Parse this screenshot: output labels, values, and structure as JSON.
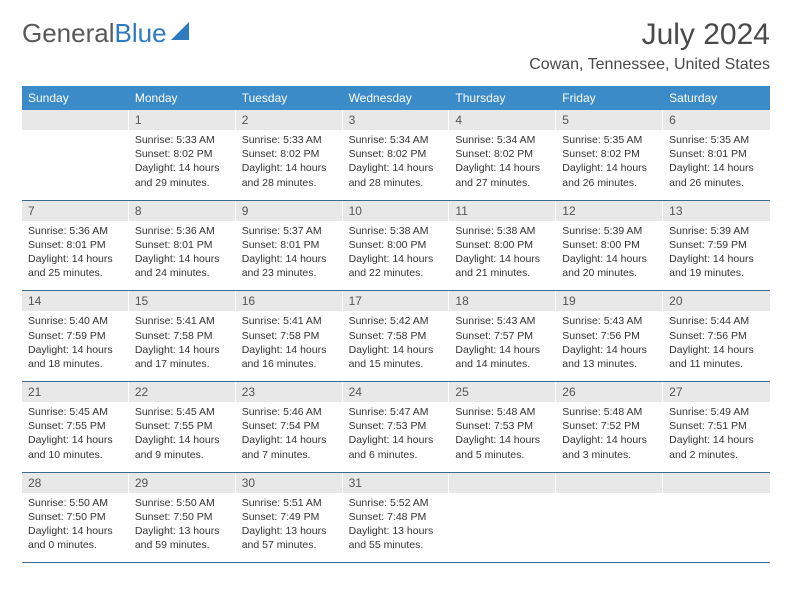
{
  "brand": {
    "part1": "General",
    "part2": "Blue"
  },
  "title": "July 2024",
  "location": "Cowan, Tennessee, United States",
  "colors": {
    "header_bg": "#3b8bc8",
    "header_text": "#ffffff",
    "date_bg": "#e8e8e8",
    "date_text": "#555555",
    "body_text": "#333333",
    "rule": "#3b6a8f",
    "logo_gray": "#5a5a5a",
    "logo_blue": "#2f7bbf"
  },
  "day_names": [
    "Sunday",
    "Monday",
    "Tuesday",
    "Wednesday",
    "Thursday",
    "Friday",
    "Saturday"
  ],
  "weeks": [
    {
      "dates": [
        "",
        "1",
        "2",
        "3",
        "4",
        "5",
        "6"
      ],
      "cells": [
        [],
        [
          "Sunrise: 5:33 AM",
          "Sunset: 8:02 PM",
          "Daylight: 14 hours",
          "and 29 minutes."
        ],
        [
          "Sunrise: 5:33 AM",
          "Sunset: 8:02 PM",
          "Daylight: 14 hours",
          "and 28 minutes."
        ],
        [
          "Sunrise: 5:34 AM",
          "Sunset: 8:02 PM",
          "Daylight: 14 hours",
          "and 28 minutes."
        ],
        [
          "Sunrise: 5:34 AM",
          "Sunset: 8:02 PM",
          "Daylight: 14 hours",
          "and 27 minutes."
        ],
        [
          "Sunrise: 5:35 AM",
          "Sunset: 8:02 PM",
          "Daylight: 14 hours",
          "and 26 minutes."
        ],
        [
          "Sunrise: 5:35 AM",
          "Sunset: 8:01 PM",
          "Daylight: 14 hours",
          "and 26 minutes."
        ]
      ]
    },
    {
      "dates": [
        "7",
        "8",
        "9",
        "10",
        "11",
        "12",
        "13"
      ],
      "cells": [
        [
          "Sunrise: 5:36 AM",
          "Sunset: 8:01 PM",
          "Daylight: 14 hours",
          "and 25 minutes."
        ],
        [
          "Sunrise: 5:36 AM",
          "Sunset: 8:01 PM",
          "Daylight: 14 hours",
          "and 24 minutes."
        ],
        [
          "Sunrise: 5:37 AM",
          "Sunset: 8:01 PM",
          "Daylight: 14 hours",
          "and 23 minutes."
        ],
        [
          "Sunrise: 5:38 AM",
          "Sunset: 8:00 PM",
          "Daylight: 14 hours",
          "and 22 minutes."
        ],
        [
          "Sunrise: 5:38 AM",
          "Sunset: 8:00 PM",
          "Daylight: 14 hours",
          "and 21 minutes."
        ],
        [
          "Sunrise: 5:39 AM",
          "Sunset: 8:00 PM",
          "Daylight: 14 hours",
          "and 20 minutes."
        ],
        [
          "Sunrise: 5:39 AM",
          "Sunset: 7:59 PM",
          "Daylight: 14 hours",
          "and 19 minutes."
        ]
      ]
    },
    {
      "dates": [
        "14",
        "15",
        "16",
        "17",
        "18",
        "19",
        "20"
      ],
      "cells": [
        [
          "Sunrise: 5:40 AM",
          "Sunset: 7:59 PM",
          "Daylight: 14 hours",
          "and 18 minutes."
        ],
        [
          "Sunrise: 5:41 AM",
          "Sunset: 7:58 PM",
          "Daylight: 14 hours",
          "and 17 minutes."
        ],
        [
          "Sunrise: 5:41 AM",
          "Sunset: 7:58 PM",
          "Daylight: 14 hours",
          "and 16 minutes."
        ],
        [
          "Sunrise: 5:42 AM",
          "Sunset: 7:58 PM",
          "Daylight: 14 hours",
          "and 15 minutes."
        ],
        [
          "Sunrise: 5:43 AM",
          "Sunset: 7:57 PM",
          "Daylight: 14 hours",
          "and 14 minutes."
        ],
        [
          "Sunrise: 5:43 AM",
          "Sunset: 7:56 PM",
          "Daylight: 14 hours",
          "and 13 minutes."
        ],
        [
          "Sunrise: 5:44 AM",
          "Sunset: 7:56 PM",
          "Daylight: 14 hours",
          "and 11 minutes."
        ]
      ]
    },
    {
      "dates": [
        "21",
        "22",
        "23",
        "24",
        "25",
        "26",
        "27"
      ],
      "cells": [
        [
          "Sunrise: 5:45 AM",
          "Sunset: 7:55 PM",
          "Daylight: 14 hours",
          "and 10 minutes."
        ],
        [
          "Sunrise: 5:45 AM",
          "Sunset: 7:55 PM",
          "Daylight: 14 hours",
          "and 9 minutes."
        ],
        [
          "Sunrise: 5:46 AM",
          "Sunset: 7:54 PM",
          "Daylight: 14 hours",
          "and 7 minutes."
        ],
        [
          "Sunrise: 5:47 AM",
          "Sunset: 7:53 PM",
          "Daylight: 14 hours",
          "and 6 minutes."
        ],
        [
          "Sunrise: 5:48 AM",
          "Sunset: 7:53 PM",
          "Daylight: 14 hours",
          "and 5 minutes."
        ],
        [
          "Sunrise: 5:48 AM",
          "Sunset: 7:52 PM",
          "Daylight: 14 hours",
          "and 3 minutes."
        ],
        [
          "Sunrise: 5:49 AM",
          "Sunset: 7:51 PM",
          "Daylight: 14 hours",
          "and 2 minutes."
        ]
      ]
    },
    {
      "dates": [
        "28",
        "29",
        "30",
        "31",
        "",
        "",
        ""
      ],
      "cells": [
        [
          "Sunrise: 5:50 AM",
          "Sunset: 7:50 PM",
          "Daylight: 14 hours",
          "and 0 minutes."
        ],
        [
          "Sunrise: 5:50 AM",
          "Sunset: 7:50 PM",
          "Daylight: 13 hours",
          "and 59 minutes."
        ],
        [
          "Sunrise: 5:51 AM",
          "Sunset: 7:49 PM",
          "Daylight: 13 hours",
          "and 57 minutes."
        ],
        [
          "Sunrise: 5:52 AM",
          "Sunset: 7:48 PM",
          "Daylight: 13 hours",
          "and 55 minutes."
        ],
        [],
        [],
        []
      ]
    }
  ]
}
